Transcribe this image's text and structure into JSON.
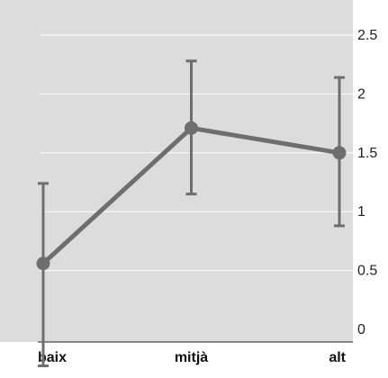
{
  "chart_data": {
    "type": "line",
    "title": "",
    "xlabel": "",
    "ylabel": "",
    "categories": [
      "baix",
      "mitjà",
      "alt"
    ],
    "values": [
      0.56,
      1.71,
      1.5
    ],
    "error_low": [
      -0.31,
      1.15,
      0.88
    ],
    "error_high": [
      1.24,
      2.28,
      2.14
    ],
    "ylim": [
      -0.3,
      2.6
    ],
    "yticks": [
      0,
      0.5,
      1,
      1.5,
      2,
      2.5
    ],
    "ytick_labels": [
      "0",
      "0.5",
      "1",
      "1.5",
      "2",
      "2.5"
    ],
    "grid": true,
    "axis_side": "right",
    "colors": {
      "background": "#dcdcdc",
      "gridline": "#ffffff",
      "series": "#6e6e6e",
      "axis": "#222222"
    }
  }
}
